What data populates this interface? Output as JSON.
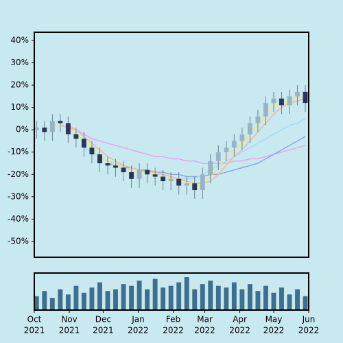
{
  "chart_data": {
    "type": "candlestick",
    "x": [
      2,
      9,
      16,
      23,
      30,
      37,
      44,
      51,
      58,
      65,
      72,
      79,
      86,
      93,
      100,
      107,
      114,
      121,
      128,
      135,
      142,
      149,
      156,
      163,
      170,
      177,
      184,
      191,
      198,
      205,
      212,
      219,
      226,
      233,
      240
    ],
    "open": [
      0,
      1,
      -1,
      4,
      3,
      -2,
      -4,
      -8,
      -11,
      -15,
      -16,
      -17,
      -19,
      -22,
      -18,
      -20,
      -21,
      -23,
      -22,
      -25,
      -24,
      -27,
      -20,
      -14,
      -10,
      -8,
      -5,
      -2,
      3,
      6,
      12,
      14,
      11,
      15,
      17
    ],
    "high": [
      4,
      4,
      7,
      7,
      6,
      1,
      -1,
      -5,
      -8,
      -12,
      -13,
      -14,
      -16,
      -15,
      -15,
      -17,
      -18,
      -19,
      -19,
      -21,
      -21,
      -17,
      -11,
      -7,
      -5,
      -2,
      1,
      6,
      9,
      15,
      17,
      17,
      18,
      20,
      20
    ],
    "low": [
      -4,
      -5,
      -5,
      -1,
      -6,
      -8,
      -12,
      -15,
      -19,
      -20,
      -21,
      -23,
      -26,
      -26,
      -24,
      -25,
      -27,
      -27,
      -29,
      -29,
      -31,
      -31,
      -24,
      -18,
      -14,
      -12,
      -9,
      -6,
      -1,
      2,
      8,
      7,
      7,
      11,
      8
    ],
    "close": [
      1,
      -1,
      4,
      3,
      -2,
      -4,
      -8,
      -11,
      -15,
      -16,
      -17,
      -19,
      -22,
      -18,
      -20,
      -21,
      -23,
      -22,
      -25,
      -24,
      -27,
      -20,
      -14,
      -10,
      -8,
      -5,
      -2,
      3,
      6,
      12,
      14,
      11,
      15,
      17,
      12
    ],
    "up_color": "#9ab4c6",
    "down_color": "#2a3656",
    "volume": [
      40,
      55,
      35,
      60,
      45,
      70,
      50,
      65,
      80,
      55,
      60,
      75,
      70,
      85,
      60,
      90,
      65,
      70,
      80,
      95,
      60,
      75,
      85,
      70,
      65,
      80,
      60,
      75,
      55,
      70,
      50,
      65,
      45,
      60,
      40
    ],
    "volume_color": "#3f6f8c",
    "series": [
      {
        "color": "#e8a6ee",
        "values": [
          null,
          null,
          null,
          2,
          1,
          0,
          -2,
          -4,
          -5,
          -6,
          -7,
          -8,
          -9,
          -10,
          -11,
          -12,
          -12,
          -13,
          -13,
          -14,
          -14,
          -15,
          -15,
          -15,
          -15,
          -14,
          -14,
          -13,
          -13,
          -12,
          -11,
          -10,
          -9,
          -8,
          -7
        ]
      },
      {
        "color": "#8fa6e0",
        "values": [
          null,
          null,
          null,
          null,
          null,
          null,
          null,
          null,
          null,
          -15,
          -16,
          -17,
          -17,
          -18,
          -18,
          -19,
          -19,
          -20,
          -20,
          -21,
          -21,
          -21,
          -20,
          -20,
          -19,
          -18,
          -17,
          -16,
          -15,
          -13,
          -11,
          -9,
          -7,
          -5,
          -3
        ]
      },
      {
        "color": "#a6dcf2",
        "values": [
          null,
          null,
          null,
          null,
          null,
          null,
          -8,
          -10,
          -12,
          -14,
          -15,
          -16,
          -17,
          -18,
          -19,
          -20,
          -20,
          -21,
          -22,
          -22,
          -22,
          -20,
          -18,
          -16,
          -14,
          -12,
          -10,
          -8,
          -6,
          -4,
          -2,
          0,
          2,
          3,
          5
        ]
      },
      {
        "color": "#f4b88a",
        "values": [
          null,
          null,
          null,
          2,
          2,
          0,
          -3,
          -6,
          -9,
          -12,
          -14,
          -16,
          -17,
          -18,
          -19,
          -19,
          -20,
          -21,
          -22,
          -23,
          -24,
          -24,
          -23,
          -20,
          -16,
          -12,
          -9,
          -5,
          -1,
          3,
          7,
          10,
          12,
          13,
          14
        ]
      },
      {
        "color": "#f3e57a",
        "values": [
          null,
          0,
          2,
          3,
          1,
          -2,
          -5,
          -8,
          -12,
          -14,
          -16,
          -17,
          -19,
          -19,
          -19,
          -20,
          -21,
          -22,
          -23,
          -24,
          -25,
          -24,
          -21,
          -17,
          -12,
          -9,
          -6,
          -2,
          2,
          7,
          11,
          12,
          13,
          15,
          14
        ]
      }
    ],
    "xlim": [
      0,
      243
    ],
    "xticks": [
      {
        "value": 0,
        "label": [
          "Oct",
          "2021"
        ]
      },
      {
        "value": 31,
        "label": [
          "Nov",
          "2021"
        ]
      },
      {
        "value": 61,
        "label": [
          "Dec",
          "2021"
        ]
      },
      {
        "value": 92,
        "label": [
          "Jan",
          "2022"
        ]
      },
      {
        "value": 123,
        "label": [
          "Feb",
          "2022"
        ]
      },
      {
        "value": 151,
        "label": [
          "Mar",
          "2022"
        ]
      },
      {
        "value": 182,
        "label": [
          "Apr",
          "2022"
        ]
      },
      {
        "value": 212,
        "label": [
          "May",
          "2022"
        ]
      },
      {
        "value": 243,
        "label": [
          "Jun",
          "2022"
        ]
      }
    ],
    "ylim": [
      -57.1,
      43.7
    ],
    "yticks": [
      {
        "value": 40,
        "label": "40%"
      },
      {
        "value": 30,
        "label": "30%"
      },
      {
        "value": 20,
        "label": "20%"
      },
      {
        "value": 10,
        "label": "10%"
      },
      {
        "value": 0,
        "label": "0%"
      },
      {
        "value": -10,
        "label": "-10%"
      },
      {
        "value": -20,
        "label": "-20%"
      },
      {
        "value": -30,
        "label": "-30%"
      },
      {
        "value": -40,
        "label": "-40%"
      },
      {
        "value": -50,
        "label": "-50%"
      }
    ]
  }
}
